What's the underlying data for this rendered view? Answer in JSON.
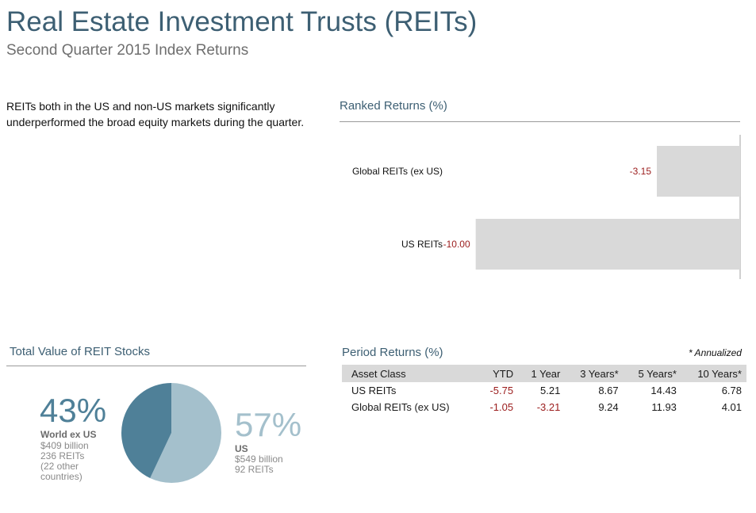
{
  "header": {
    "title": "Real Estate Investment Trusts (REITs)",
    "subtitle": "Second Quarter 2015 Index Returns"
  },
  "summary": "REITs both in the US and non-US markets significantly underperformed the broad equity markets during the quarter.",
  "chart_data": [
    {
      "type": "bar",
      "orientation": "horizontal",
      "title": "Ranked Returns (%)",
      "categories": [
        "Global REITs (ex US)",
        "US REITs"
      ],
      "values": [
        -3.15,
        -10.0
      ],
      "value_labels": [
        "-3.15",
        "-10.00"
      ],
      "xlim": [
        -10.5,
        0
      ],
      "bar_color": "#d9d9d9",
      "negative_label_color": "#9b1c1c"
    },
    {
      "type": "pie",
      "title": "Total Value of REIT Stocks",
      "slices": [
        {
          "name": "World ex US",
          "value": 43,
          "pct_label": "43%",
          "details": [
            "$409 billion",
            "236 REITs",
            "(22 other countries)"
          ],
          "color": "#4f8098"
        },
        {
          "name": "US",
          "value": 57,
          "pct_label": "57%",
          "details": [
            "$549 billion",
            "92 REITs"
          ],
          "color": "#a4c0cc"
        }
      ]
    },
    {
      "type": "table",
      "title": "Period Returns (%)",
      "note": "* Annualized",
      "columns": [
        "Asset Class",
        "YTD",
        "1 Year",
        "3 Years*",
        "5 Years*",
        "10 Years*"
      ],
      "rows": [
        [
          "US REITs",
          "-5.75",
          "5.21",
          "8.67",
          "14.43",
          "6.78"
        ],
        [
          "Global REITs (ex US)",
          "-1.05",
          "-3.21",
          "9.24",
          "11.93",
          "4.01"
        ]
      ]
    }
  ]
}
